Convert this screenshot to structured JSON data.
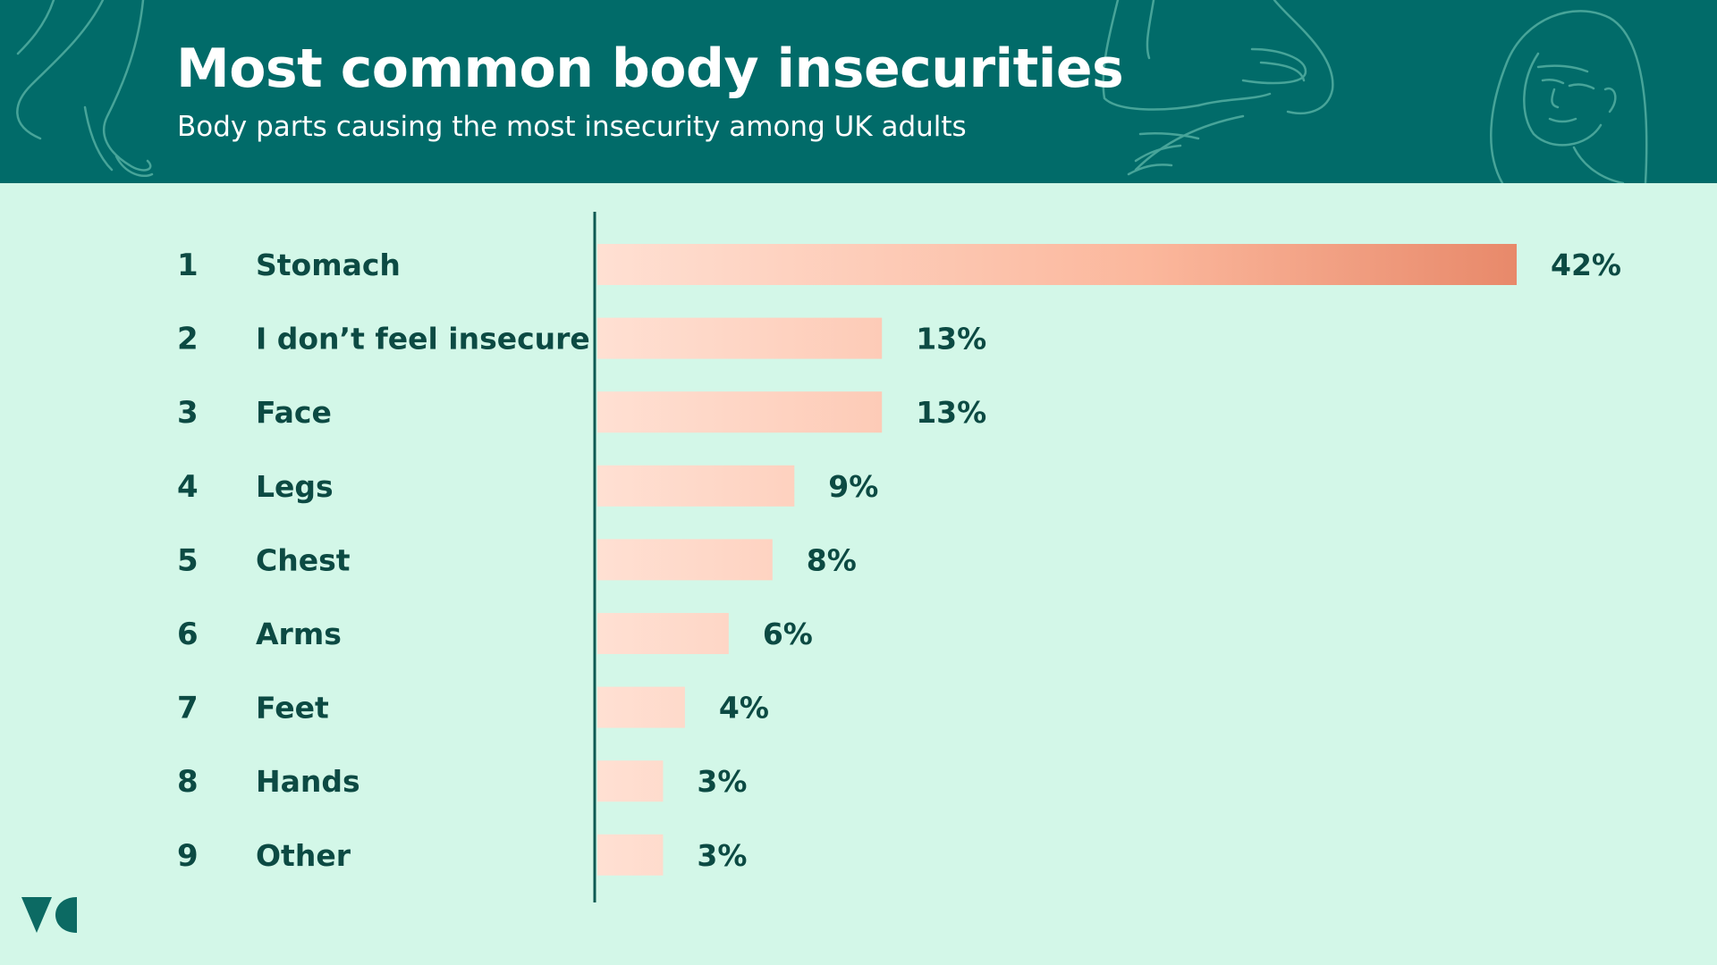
{
  "header": {
    "title": "Most common body insecurities",
    "subtitle": "Body parts causing the most insecurity among UK adults"
  },
  "colors": {
    "header_bg": "#016b69",
    "background": "#d3f7e8",
    "text": "#0c4a43",
    "bar_light": "#ffe0d3",
    "bar_dark": "#e8896a"
  },
  "icons": [
    "feet-illustration",
    "hands-illustration",
    "woman-face-illustration",
    "brand-logo"
  ],
  "chart_data": {
    "type": "bar",
    "orientation": "horizontal",
    "title": "Most common body insecurities",
    "subtitle": "Body parts causing the most insecurity among UK adults",
    "ranks": [
      "1",
      "2",
      "3",
      "4",
      "5",
      "6",
      "7",
      "8",
      "9"
    ],
    "categories": [
      "Stomach",
      "I don’t feel insecure",
      "Face",
      "Legs",
      "Chest",
      "Arms",
      "Feet",
      "Hands",
      "Other"
    ],
    "values": [
      42,
      13,
      13,
      9,
      8,
      6,
      4,
      3,
      3
    ],
    "labels": [
      "42%",
      "13%",
      "13%",
      "9%",
      "8%",
      "6%",
      "4%",
      "3%",
      "3%"
    ],
    "unit": "%",
    "xlim": [
      0,
      42
    ],
    "grid": false,
    "legend": "none"
  }
}
